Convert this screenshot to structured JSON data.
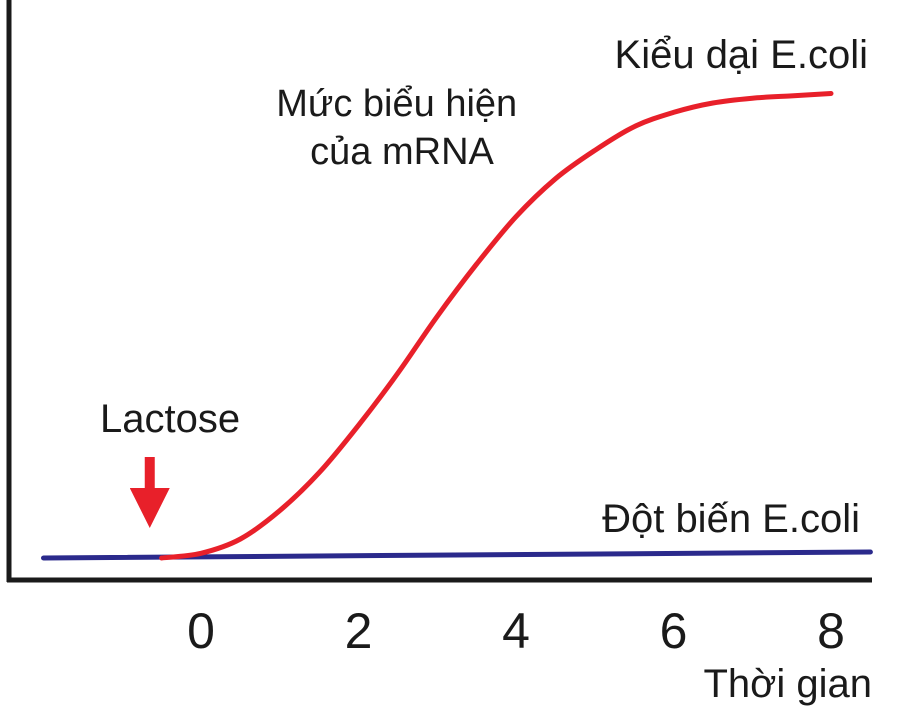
{
  "chart_data": {
    "type": "line",
    "xlabel": "Thời gian",
    "ylabel": "Mức biểu hiện\ncủa mRNA",
    "xlim": [
      -2.0,
      8.5
    ],
    "ylim": [
      0,
      1
    ],
    "x_ticks": [
      "0",
      "2",
      "4",
      "6",
      "8"
    ],
    "x_tick_values": [
      0,
      2,
      4,
      6,
      8
    ],
    "grid": false,
    "series": [
      {
        "name": "Kiểu dại E.coli",
        "color": "#e8202a",
        "x": [
          -0.5,
          0,
          0.5,
          1,
          1.5,
          2,
          2.5,
          3,
          3.5,
          4,
          4.5,
          5,
          5.5,
          6,
          6.5,
          7,
          7.5,
          8
        ],
        "y": [
          0.0,
          0.01,
          0.04,
          0.1,
          0.18,
          0.28,
          0.39,
          0.51,
          0.62,
          0.72,
          0.8,
          0.86,
          0.91,
          0.94,
          0.96,
          0.97,
          0.975,
          0.98
        ]
      },
      {
        "name": "Đột biến E.coli",
        "color": "#2b2a8c",
        "x": [
          -2.0,
          8.5
        ],
        "y": [
          0.0,
          0.0
        ]
      }
    ],
    "annotations": [
      {
        "text": "Lactose",
        "x": -0.6,
        "arrow_color": "#e8202a"
      }
    ]
  }
}
